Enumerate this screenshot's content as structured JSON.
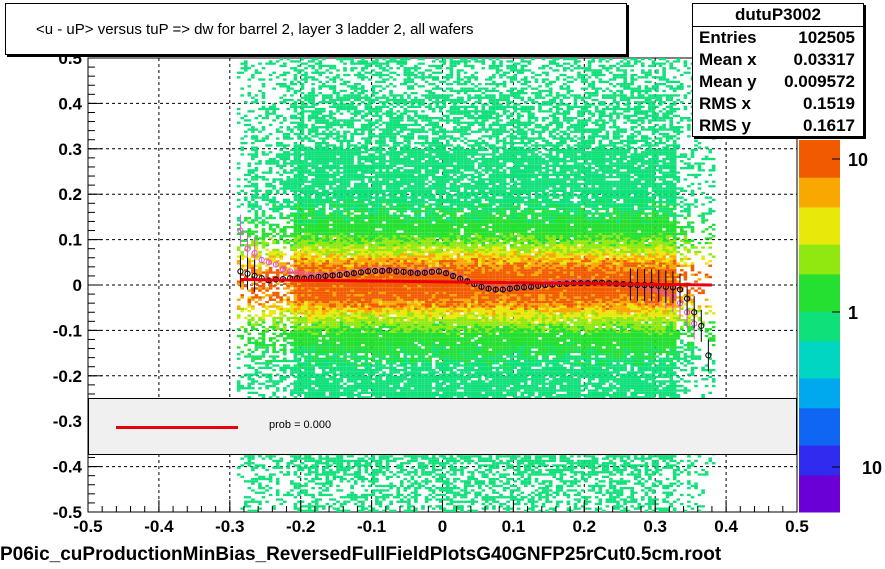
{
  "chart_data": {
    "type": "heatmap",
    "title": "<u - uP>       versus  tuP =>  dw for barrel 2, layer 3 ladder 2, all wafers",
    "xlabel": "",
    "ylabel": "",
    "xlim": [
      -0.5,
      0.5
    ],
    "ylim": [
      -0.5,
      0.5
    ],
    "x_ticks": [
      "-0.5",
      "-0.4",
      "-0.3",
      "-0.2",
      "-0.1",
      "0",
      "0.1",
      "0.2",
      "0.3",
      "0.4",
      "0.5"
    ],
    "y_ticks": [
      "-0.5",
      "-0.4",
      "-0.3",
      "-0.2",
      "-0.1",
      "0",
      "0.1",
      "0.2",
      "0.3",
      "0.4",
      "0.5"
    ],
    "grid": true,
    "log_z": true,
    "z_ticks": [
      "10",
      "1",
      "10"
    ],
    "palette_colors": [
      "#6a00d6",
      "#2f2cf0",
      "#0f66f2",
      "#00a8ee",
      "#00d6c2",
      "#10e07a",
      "#25e030",
      "#90e810",
      "#e8e80a",
      "#f8a800",
      "#f25a00"
    ],
    "stats": {
      "name": "dutuP3002",
      "rows": [
        {
          "label": "Entries",
          "value": "102505"
        },
        {
          "label": "Mean x",
          "value": "0.03317"
        },
        {
          "label": "Mean y",
          "value": "0.009572"
        },
        {
          "label": "RMS x",
          "value": "0.1519"
        },
        {
          "label": "RMS y",
          "value": "0.1617"
        }
      ]
    },
    "fit_label": "prob = 0.000",
    "fit_line": {
      "x": [
        -0.285,
        0.38
      ],
      "y": [
        0.012,
        0.0
      ]
    },
    "profile_black": {
      "x": [
        -0.285,
        -0.275,
        -0.265,
        -0.255,
        -0.245,
        -0.235,
        -0.225,
        -0.215,
        -0.205,
        -0.195,
        -0.185,
        -0.175,
        -0.165,
        -0.155,
        -0.145,
        -0.135,
        -0.125,
        -0.115,
        -0.105,
        -0.095,
        -0.085,
        -0.075,
        -0.065,
        -0.055,
        -0.045,
        -0.035,
        -0.025,
        -0.015,
        -0.005,
        0.005,
        0.015,
        0.025,
        0.035,
        0.045,
        0.055,
        0.065,
        0.075,
        0.085,
        0.095,
        0.105,
        0.115,
        0.125,
        0.135,
        0.145,
        0.155,
        0.165,
        0.175,
        0.185,
        0.195,
        0.205,
        0.215,
        0.225,
        0.235,
        0.245,
        0.255,
        0.265,
        0.275,
        0.285,
        0.295,
        0.305,
        0.315,
        0.325,
        0.335,
        0.345,
        0.355,
        0.365,
        0.375
      ],
      "y": [
        0.03,
        0.025,
        0.02,
        0.015,
        0.01,
        0.012,
        0.013,
        0.015,
        0.015,
        0.014,
        0.016,
        0.018,
        0.02,
        0.021,
        0.022,
        0.024,
        0.026,
        0.028,
        0.03,
        0.031,
        0.031,
        0.032,
        0.03,
        0.029,
        0.027,
        0.026,
        0.027,
        0.029,
        0.03,
        0.026,
        0.02,
        0.014,
        0.008,
        0.002,
        -0.004,
        -0.008,
        -0.01,
        -0.01,
        -0.008,
        -0.006,
        -0.005,
        -0.004,
        -0.002,
        0.0,
        0.001,
        0.002,
        0.003,
        0.004,
        0.004,
        0.004,
        0.005,
        0.005,
        0.004,
        0.003,
        0.002,
        0.001,
        0.0,
        0.0,
        0.0,
        -0.002,
        -0.004,
        -0.005,
        -0.01,
        -0.03,
        -0.06,
        -0.09,
        -0.155
      ]
    },
    "profile_pink": {
      "x": [
        -0.285,
        -0.275,
        -0.265,
        -0.255,
        -0.245,
        -0.235,
        -0.225,
        -0.215,
        -0.205,
        -0.195,
        -0.185,
        -0.175,
        -0.165,
        -0.155,
        -0.145,
        -0.135,
        -0.125,
        -0.115,
        -0.105,
        -0.095,
        -0.085,
        -0.075,
        -0.065,
        -0.055,
        -0.045,
        -0.035,
        -0.025,
        -0.015,
        -0.005,
        0.005,
        0.015,
        0.025,
        0.035,
        0.045,
        0.055,
        0.065,
        0.075,
        0.085,
        0.095,
        0.105,
        0.115,
        0.125,
        0.135,
        0.145,
        0.155,
        0.165,
        0.175,
        0.185,
        0.195,
        0.205,
        0.215,
        0.225,
        0.235,
        0.245,
        0.255,
        0.265,
        0.275,
        0.285,
        0.295,
        0.305,
        0.315,
        0.325,
        0.335,
        0.345,
        0.355
      ],
      "y": [
        0.12,
        0.08,
        0.07,
        0.055,
        0.05,
        0.045,
        0.035,
        0.03,
        0.027,
        0.024,
        0.022,
        0.022,
        0.022,
        0.023,
        0.024,
        0.026,
        0.028,
        0.03,
        0.032,
        0.033,
        0.034,
        0.033,
        0.032,
        0.03,
        0.029,
        0.028,
        0.03,
        0.032,
        0.033,
        0.028,
        0.022,
        0.016,
        0.01,
        0.004,
        -0.002,
        -0.006,
        -0.008,
        -0.008,
        -0.006,
        -0.004,
        -0.002,
        0.0,
        0.002,
        0.003,
        0.004,
        0.005,
        0.006,
        0.006,
        0.006,
        0.006,
        0.006,
        0.005,
        0.004,
        0.003,
        0.002,
        0.0,
        -0.002,
        -0.004,
        -0.008,
        -0.012,
        -0.018,
        -0.025,
        -0.04,
        -0.06,
        -0.085
      ]
    }
  },
  "footer": "P06ic_cuProductionMinBias_ReversedFullFieldPlotsG40GNFP25rCut0.5cm.root"
}
